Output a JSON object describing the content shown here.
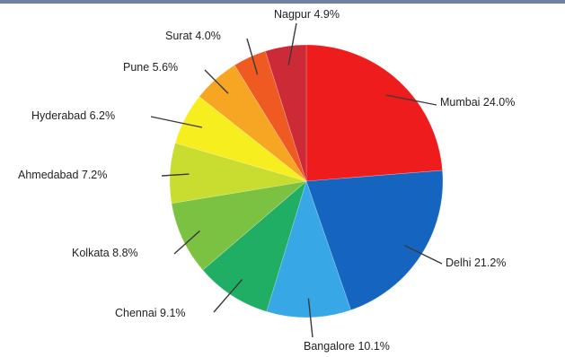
{
  "chart_data": {
    "type": "pie",
    "title": "",
    "slices": [
      {
        "label": "Mumbai",
        "value": 24.0,
        "display": "Mumbai 24.0%",
        "color": "#ee1c1c"
      },
      {
        "label": "Delhi",
        "value": 21.2,
        "display": "Delhi 21.2%",
        "color": "#1565c0"
      },
      {
        "label": "Bangalore",
        "value": 10.1,
        "display": "Bangalore 10.1%",
        "color": "#37a7e6"
      },
      {
        "label": "Chennai",
        "value": 9.1,
        "display": "Chennai 9.1%",
        "color": "#1fae64"
      },
      {
        "label": "Kolkata",
        "value": 8.8,
        "display": "Kolkata 8.8%",
        "color": "#7cc242"
      },
      {
        "label": "Ahmedabad",
        "value": 7.2,
        "display": "Ahmedabad 7.2%",
        "color": "#c9dc30"
      },
      {
        "label": "Hyderabad",
        "value": 6.2,
        "display": "Hyderabad 6.2%",
        "color": "#f6ee1e"
      },
      {
        "label": "Pune",
        "value": 5.6,
        "display": "Pune 5.6%",
        "color": "#f6a623"
      },
      {
        "label": "Surat",
        "value": 4.0,
        "display": "Surat 4.0%",
        "color": "#ee5a22"
      },
      {
        "label": "Nagpur",
        "value": 4.9,
        "display": "Nagpur 4.9%",
        "color": "#cc2a36"
      }
    ],
    "start": "top",
    "direction": "clockwise",
    "legend": "none"
  }
}
